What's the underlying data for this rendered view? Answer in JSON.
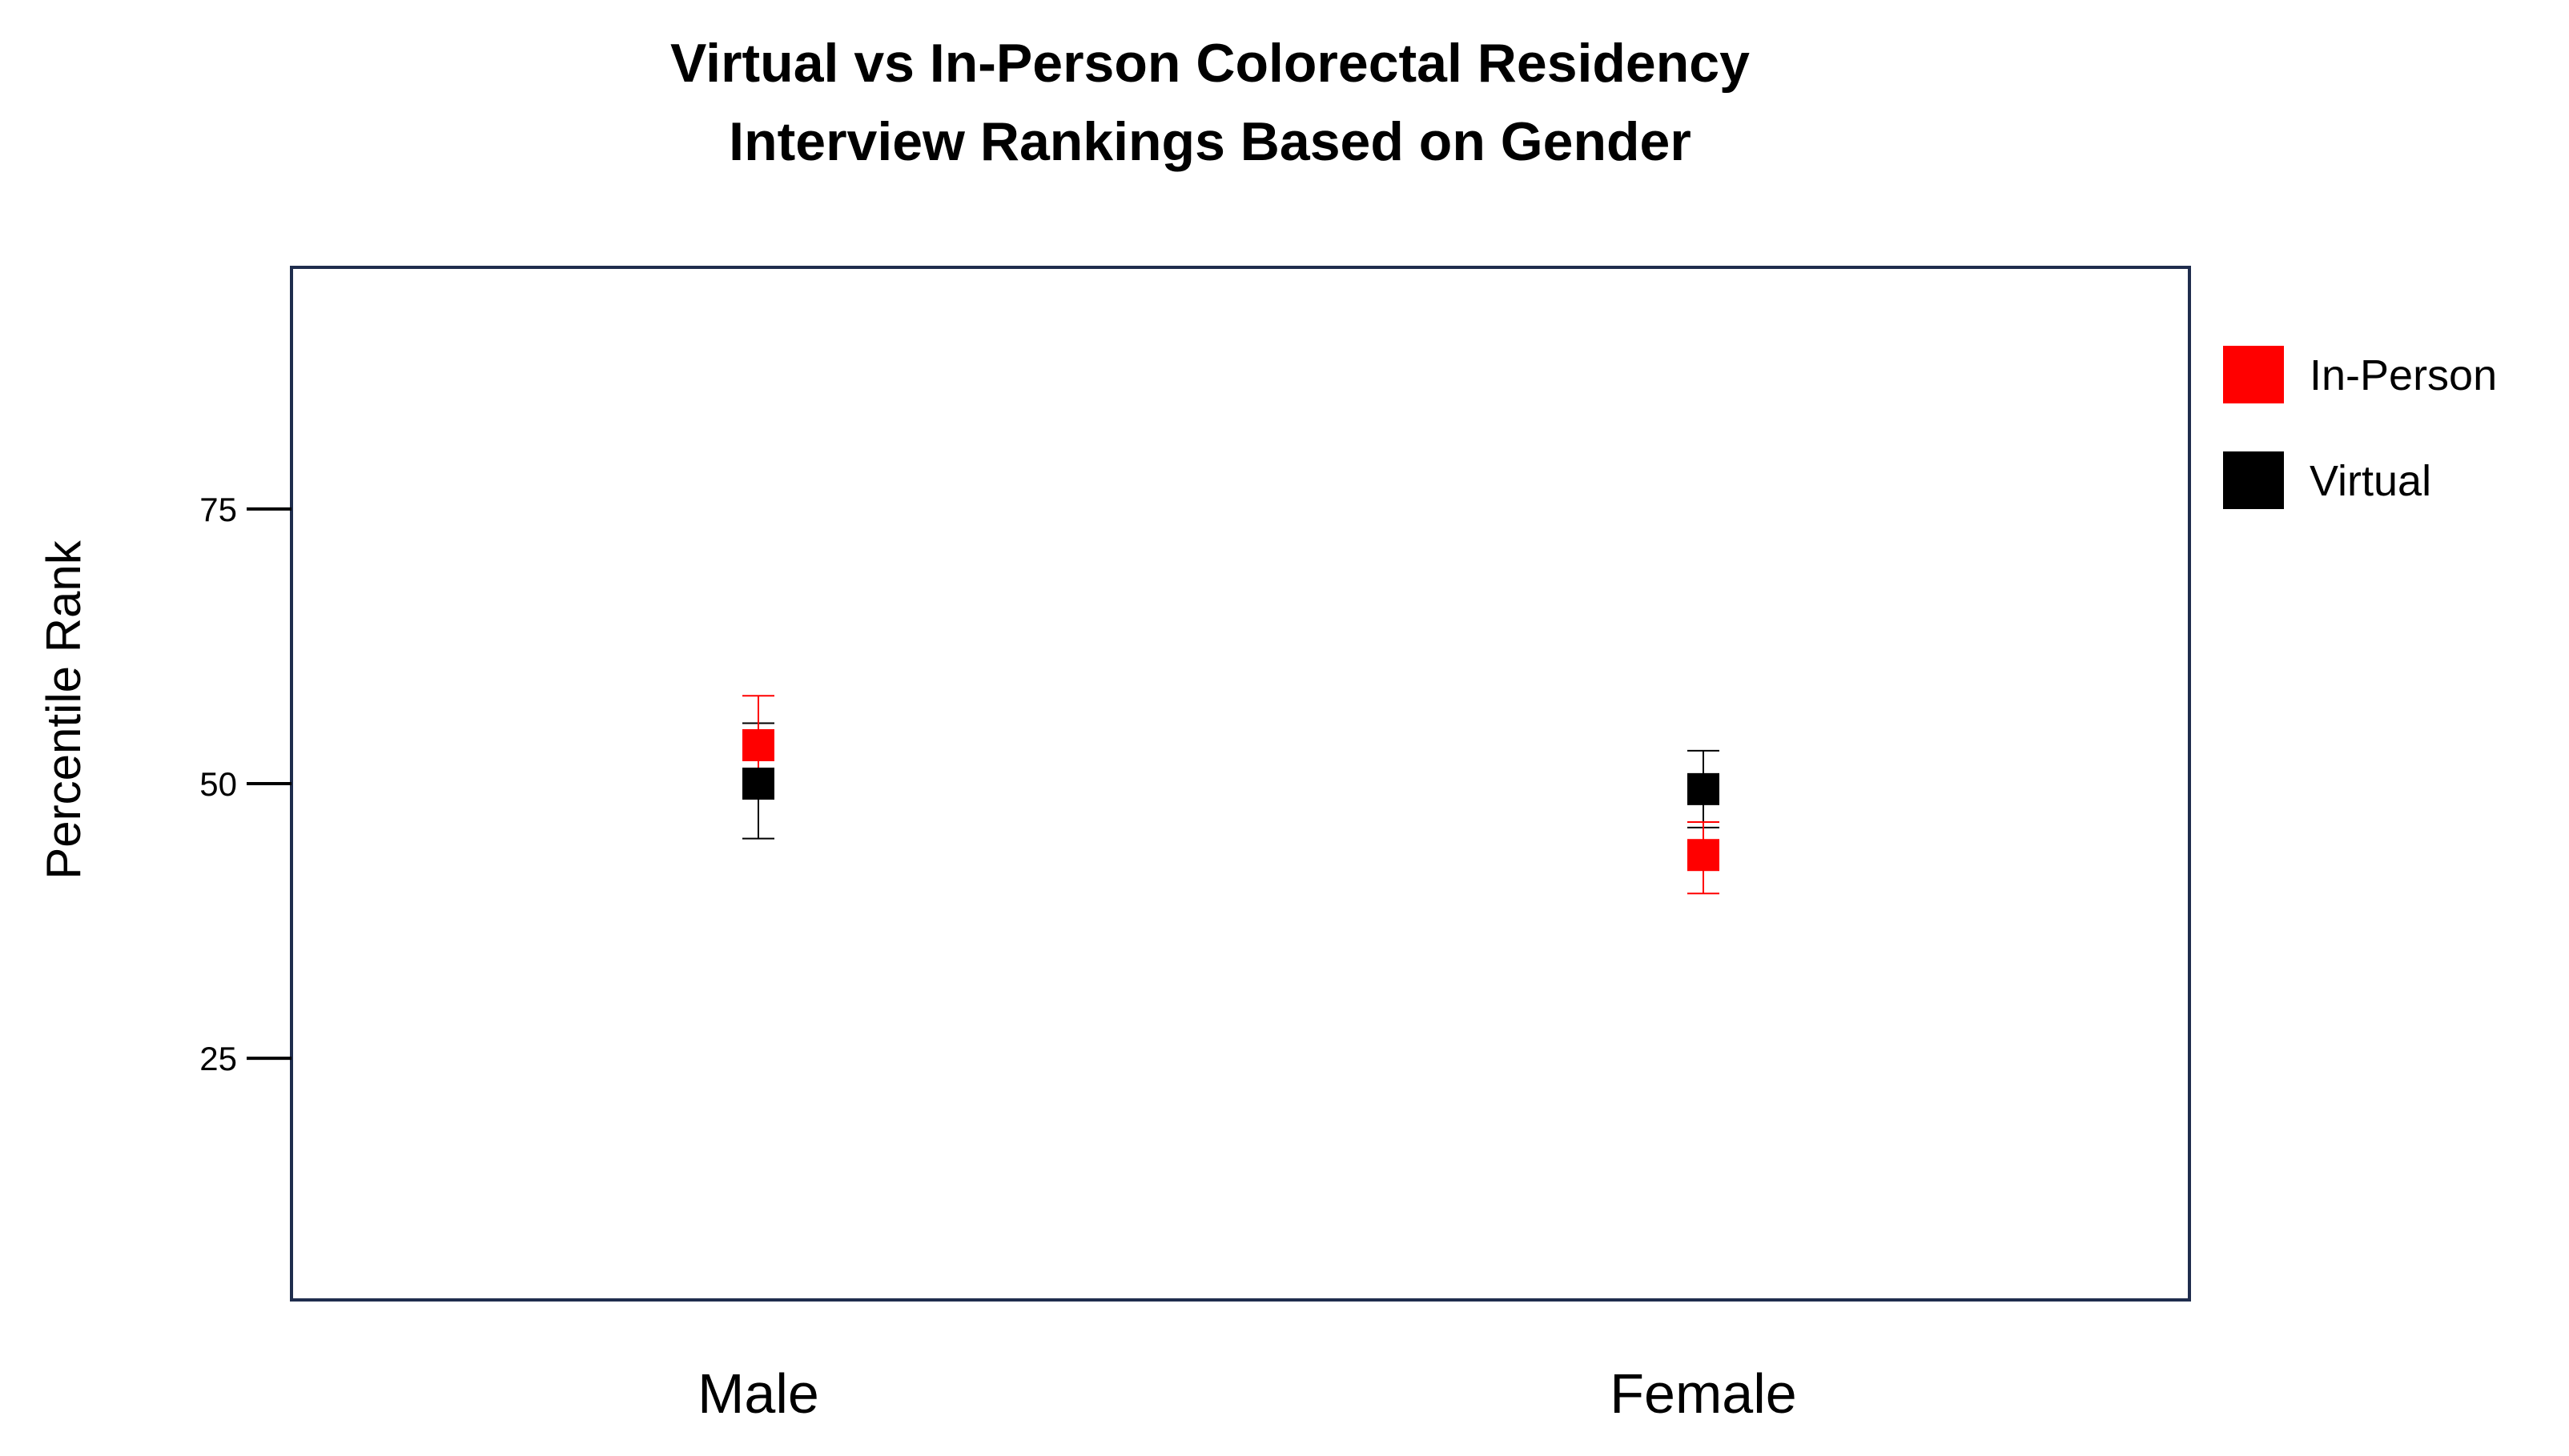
{
  "chart_data": {
    "type": "scatter",
    "title_lines": [
      "Virtual vs In-Person Colorectal Residency",
      "Interview Rankings Based on Gender"
    ],
    "xlabel": "",
    "ylabel": "Percentile Rank",
    "categories": [
      "Male",
      "Female"
    ],
    "ylim": [
      3,
      97
    ],
    "yticks": [
      25,
      50,
      75
    ],
    "grid": false,
    "legend_position": "right",
    "series": [
      {
        "name": "In-Person",
        "color": "#ff0000",
        "marker": "square",
        "values": [
          53.5,
          43.5
        ],
        "error_low": [
          49.5,
          40.0
        ],
        "error_high": [
          58.0,
          46.5
        ]
      },
      {
        "name": "Virtual",
        "color": "#000000",
        "marker": "square",
        "values": [
          50.0,
          49.5
        ],
        "error_low": [
          45.0,
          46.0
        ],
        "error_high": [
          55.5,
          53.0
        ]
      }
    ]
  }
}
